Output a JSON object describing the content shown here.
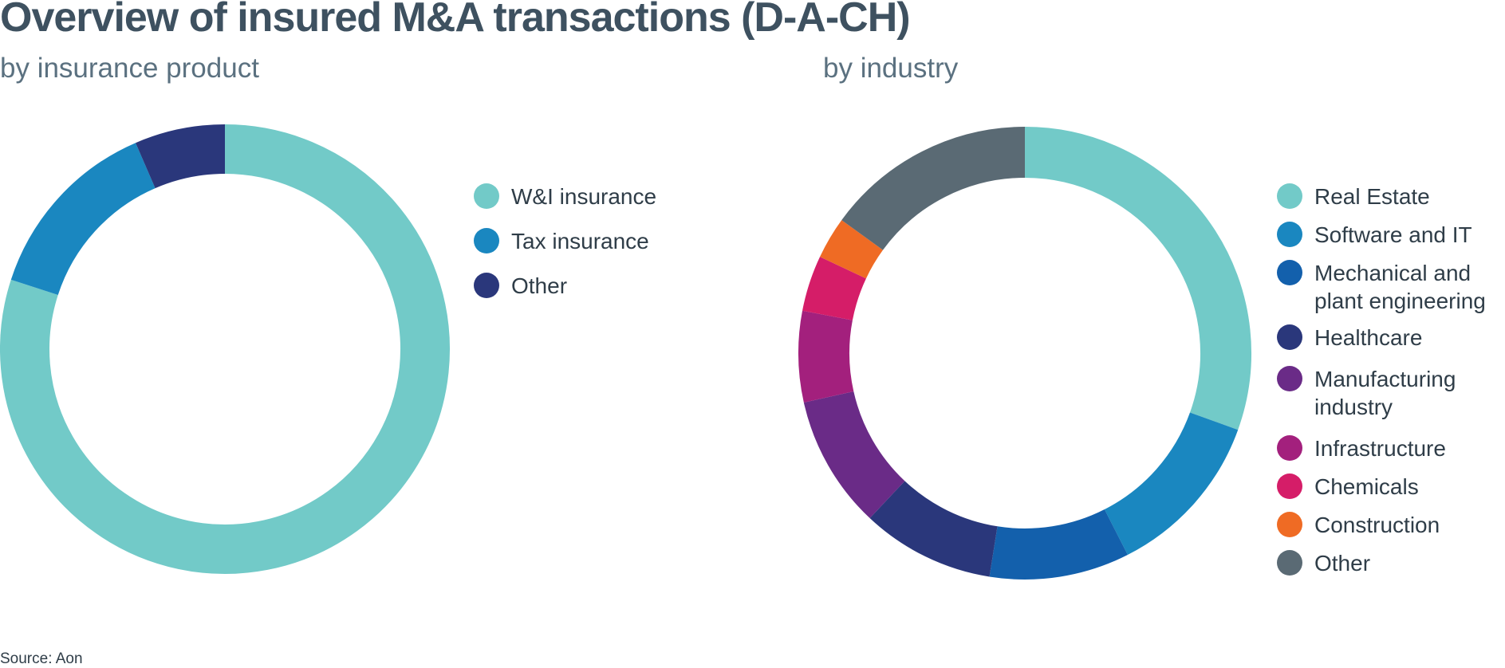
{
  "title": "Overview of insured M&A transactions (D-A-CH)",
  "source": "Source: Aon",
  "chart_data": [
    {
      "type": "pie",
      "subtitle": "by insurance product",
      "donut": true,
      "categories": [
        "W&I insurance",
        "Tax insurance",
        "Other"
      ],
      "values": [
        80,
        13.5,
        6.5
      ],
      "colors": [
        "#72cac8",
        "#1a87c0",
        "#2a377b"
      ],
      "legend_position": "right"
    },
    {
      "type": "pie",
      "subtitle": "by industry",
      "donut": true,
      "categories": [
        "Real Estate",
        "Software and IT",
        "Mechanical and\nplant engineering",
        "Healthcare",
        "Manufacturing\nindustry",
        "Infrastructure",
        "Chemicals",
        "Construction",
        "Other"
      ],
      "values": [
        30.5,
        12,
        10,
        9.5,
        9.5,
        6.5,
        4,
        3,
        15
      ],
      "colors": [
        "#72cac8",
        "#1a87c0",
        "#1360ac",
        "#2a377b",
        "#6a2b87",
        "#a3207d",
        "#d51d68",
        "#ef6b24",
        "#5a6a74"
      ],
      "legend_position": "right"
    }
  ]
}
